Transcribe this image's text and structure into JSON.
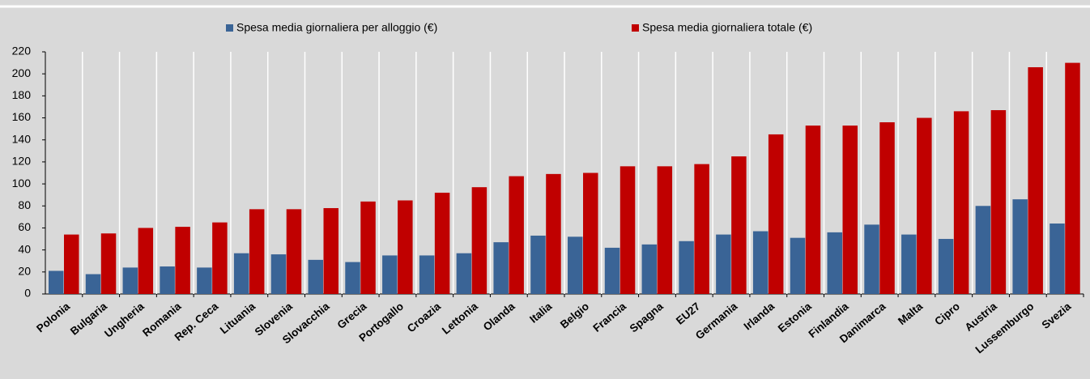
{
  "chart_data": {
    "type": "bar",
    "categories": [
      "Polonia",
      "Bulgaria",
      "Ungheria",
      "Romania",
      "Rep. Ceca",
      "Lituania",
      "Slovenia",
      "Slovacchia",
      "Grecia",
      "Portogallo",
      "Croazia",
      "Lettonia",
      "Olanda",
      "Italia",
      "Belgio",
      "Francia",
      "Spagna",
      "EU27",
      "Germania",
      "Irlanda",
      "Estonia",
      "Finlandia",
      "Danimarca",
      "Malta",
      "Cipro",
      "Austria",
      "Lussemburgo",
      "Svezia"
    ],
    "series": [
      {
        "name": "Spesa media giornaliera per alloggio (€)",
        "color": "#3a6496",
        "values": [
          21,
          18,
          24,
          25,
          24,
          37,
          36,
          31,
          29,
          35,
          35,
          37,
          47,
          53,
          52,
          42,
          45,
          48,
          54,
          57,
          51,
          56,
          63,
          54,
          50,
          80,
          86,
          64
        ]
      },
      {
        "name": "Spesa media giornaliera totale (€)",
        "color": "#c00000",
        "values": [
          54,
          55,
          60,
          61,
          65,
          77,
          77,
          78,
          84,
          85,
          92,
          97,
          107,
          109,
          110,
          116,
          116,
          118,
          125,
          145,
          153,
          153,
          156,
          160,
          166,
          167,
          206,
          210
        ]
      }
    ],
    "ylim": [
      0,
      220
    ],
    "yticks": [
      0,
      20,
      40,
      60,
      80,
      100,
      120,
      140,
      160,
      180,
      200,
      220
    ]
  }
}
